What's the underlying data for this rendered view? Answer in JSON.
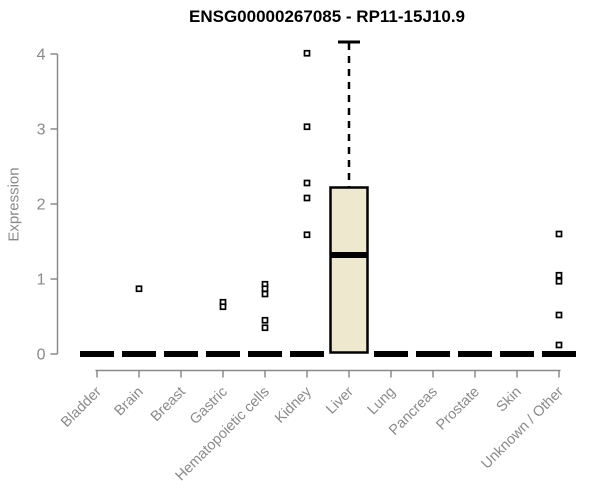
{
  "chart_data": {
    "type": "boxplot",
    "title": "ENSG00000267085 - RP11-15J10.9",
    "xlabel": "",
    "ylabel": "Expression",
    "ylim": [
      0,
      4.2
    ],
    "yticks": [
      0,
      1,
      2,
      3,
      4
    ],
    "grid": false,
    "legend": "none",
    "categories": [
      "Bladder",
      "Brain",
      "Breast",
      "Gastric",
      "Hematopoietic cells",
      "Kidney",
      "Liver",
      "Lung",
      "Pancreas",
      "Prostate",
      "Skin",
      "Unknown / Other"
    ],
    "boxes": [
      {
        "category": "Bladder",
        "median": 0
      },
      {
        "category": "Brain",
        "median": 0
      },
      {
        "category": "Breast",
        "median": 0
      },
      {
        "category": "Gastric",
        "median": 0
      },
      {
        "category": "Hematopoietic cells",
        "median": 0
      },
      {
        "category": "Kidney",
        "median": 0
      },
      {
        "category": "Liver",
        "q1": 0.02,
        "median": 1.32,
        "q3": 2.22,
        "whisker_high": 4.16
      },
      {
        "category": "Lung",
        "median": 0
      },
      {
        "category": "Pancreas",
        "median": 0
      },
      {
        "category": "Prostate",
        "median": 0
      },
      {
        "category": "Skin",
        "median": 0
      },
      {
        "category": "Unknown / Other",
        "median": 0
      }
    ],
    "outliers": [
      {
        "category": "Brain",
        "values": [
          0.87
        ]
      },
      {
        "category": "Gastric",
        "values": [
          0.69,
          0.63
        ]
      },
      {
        "category": "Hematopoietic cells",
        "values": [
          0.93,
          0.87,
          0.8,
          0.45,
          0.35
        ]
      },
      {
        "category": "Kidney",
        "values": [
          4.01,
          3.03,
          2.28,
          2.08,
          1.59
        ]
      },
      {
        "category": "Unknown / Other",
        "values": [
          1.6,
          1.05,
          0.97,
          0.52,
          0.12
        ]
      }
    ],
    "colors": {
      "box_fill": "#EDE8CE",
      "box_border": "#000000",
      "median": "#000000",
      "whisker": "#000000",
      "outlier_stroke": "#000000",
      "outlier_fill": "#FFFFFF",
      "axis": "#8a8a8a",
      "tick_label": "#8a8a8a",
      "title": "#000000",
      "background": "#FFFFFF"
    }
  }
}
